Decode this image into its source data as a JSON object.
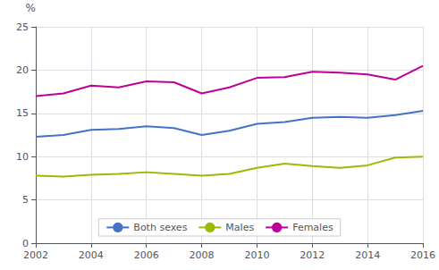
{
  "chart_data": {
    "type": "line",
    "ylabel": "%",
    "x": [
      2002,
      2003,
      2004,
      2005,
      2006,
      2007,
      2008,
      2009,
      2010,
      2011,
      2012,
      2013,
      2014,
      2015,
      2016
    ],
    "series": [
      {
        "name": "Both sexes",
        "color": "#4472C4",
        "values": [
          12.3,
          12.5,
          13.1,
          13.2,
          13.5,
          13.3,
          12.5,
          13.0,
          13.8,
          14.0,
          14.5,
          14.6,
          14.5,
          14.8,
          15.3
        ]
      },
      {
        "name": "Males",
        "color": "#9BBB00",
        "values": [
          7.8,
          7.7,
          7.9,
          8.0,
          8.2,
          8.0,
          7.8,
          8.0,
          8.7,
          9.2,
          8.9,
          8.7,
          9.0,
          9.9,
          10.0
        ]
      },
      {
        "name": "Females",
        "color": "#BE0099",
        "values": [
          17.0,
          17.3,
          18.2,
          18.0,
          18.7,
          18.6,
          17.3,
          18.0,
          19.1,
          19.2,
          19.8,
          19.7,
          19.5,
          18.9,
          20.5
        ]
      }
    ],
    "xlim": [
      2002,
      2016
    ],
    "xticks": [
      2002,
      2004,
      2006,
      2008,
      2010,
      2012,
      2014,
      2016
    ],
    "ylim": [
      0,
      25
    ],
    "yticks": [
      0,
      5,
      10,
      15,
      20,
      25
    ],
    "grid": true,
    "legend": "lower center"
  }
}
